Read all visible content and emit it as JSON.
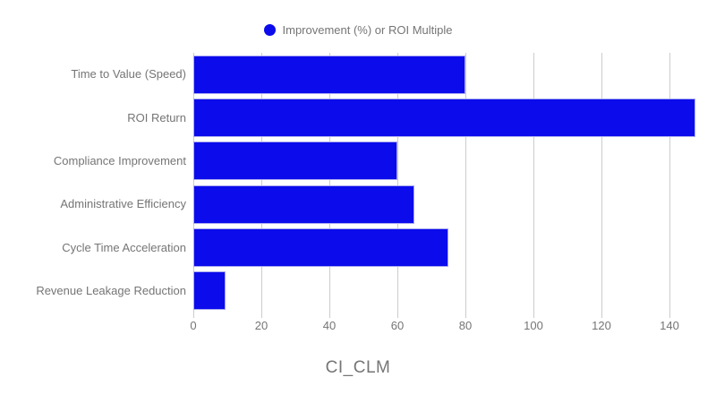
{
  "chart_data": {
    "type": "bar",
    "orientation": "horizontal",
    "title": "CI_CLM",
    "legend": {
      "label": "Improvement (%) or ROI Multiple",
      "position": "top",
      "marker": "circle-icon"
    },
    "categories": [
      "Time to Value (Speed)",
      "ROI Return",
      "Compliance Improvement",
      "Administrative Efficiency",
      "Cycle Time Acceleration",
      "Revenue Leakage Reduction"
    ],
    "values": [
      80,
      150,
      60,
      65,
      75,
      9.5
    ],
    "x_ticks": [
      0,
      20,
      40,
      60,
      80,
      100,
      120,
      140
    ],
    "xlim": [
      0,
      147.5
    ],
    "xlabel": "CI_CLM",
    "ylabel": "",
    "grid": true,
    "colors": {
      "bar": "#0b0bec",
      "bar_border": "#a9a9ef",
      "gridline": "#cccccc",
      "text": "#757575",
      "background": "#ffffff"
    }
  }
}
